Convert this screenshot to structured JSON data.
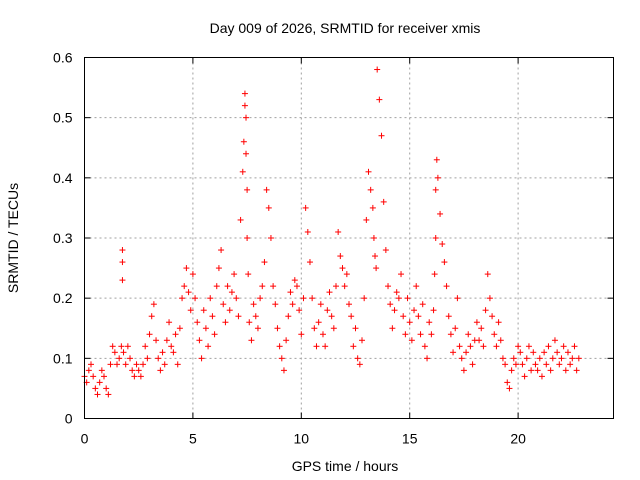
{
  "chart_data": {
    "type": "scatter",
    "title": "Day 009 of 2026, SRMTID for receiver xmis",
    "xlabel": "GPS time / hours",
    "ylabel": "SRMTID / TECUs",
    "xlim": [
      0,
      24.4
    ],
    "ylim": [
      0,
      0.6
    ],
    "xticks": [
      0,
      5,
      10,
      15,
      20
    ],
    "yticks": [
      0,
      0.1,
      0.2,
      0.3,
      0.4,
      0.5,
      0.6
    ],
    "xtick_labels": [
      "0",
      "5",
      "10",
      "15",
      "20"
    ],
    "ytick_labels": [
      "0",
      "0.1",
      "0.2",
      "0.3",
      "0.4",
      "0.5",
      "0.6"
    ],
    "grid": true,
    "marker": "+",
    "color": "#ff0000",
    "series": [
      {
        "name": "SRMTID",
        "x": [
          0.0,
          0.1,
          0.2,
          0.3,
          0.4,
          0.5,
          0.6,
          0.7,
          0.8,
          0.9,
          1.0,
          1.1,
          1.2,
          1.3,
          1.4,
          1.5,
          1.6,
          1.7,
          1.75,
          1.75,
          1.75,
          1.8,
          1.9,
          2.0,
          2.1,
          2.2,
          2.3,
          2.4,
          2.5,
          2.6,
          2.7,
          2.8,
          2.9,
          3.0,
          3.1,
          3.2,
          3.3,
          3.4,
          3.5,
          3.6,
          3.7,
          3.8,
          3.9,
          4.0,
          4.1,
          4.2,
          4.3,
          4.4,
          4.5,
          4.6,
          4.7,
          4.8,
          4.9,
          5.0,
          5.1,
          5.2,
          5.3,
          5.4,
          5.5,
          5.6,
          5.7,
          5.8,
          5.9,
          6.0,
          6.1,
          6.2,
          6.3,
          6.4,
          6.5,
          6.6,
          6.7,
          6.8,
          6.9,
          7.0,
          7.1,
          7.2,
          7.3,
          7.35,
          7.4,
          7.4,
          7.45,
          7.45,
          7.5,
          7.5,
          7.55,
          7.6,
          7.7,
          7.8,
          7.9,
          8.0,
          8.1,
          8.2,
          8.3,
          8.4,
          8.5,
          8.6,
          8.7,
          8.8,
          8.9,
          9.0,
          9.1,
          9.2,
          9.3,
          9.4,
          9.5,
          9.6,
          9.7,
          9.8,
          9.9,
          10.0,
          10.1,
          10.2,
          10.3,
          10.4,
          10.5,
          10.6,
          10.7,
          10.8,
          10.9,
          11.0,
          11.1,
          11.2,
          11.3,
          11.4,
          11.5,
          11.6,
          11.7,
          11.8,
          11.9,
          12.0,
          12.1,
          12.2,
          12.3,
          12.4,
          12.5,
          12.6,
          12.7,
          12.8,
          12.9,
          13.0,
          13.1,
          13.2,
          13.3,
          13.35,
          13.4,
          13.45,
          13.5,
          13.6,
          13.7,
          13.8,
          13.9,
          14.0,
          14.1,
          14.2,
          14.3,
          14.4,
          14.5,
          14.6,
          14.7,
          14.8,
          14.9,
          15.0,
          15.1,
          15.2,
          15.3,
          15.4,
          15.5,
          15.6,
          15.7,
          15.8,
          15.9,
          16.0,
          16.1,
          16.15,
          16.2,
          16.2,
          16.25,
          16.3,
          16.4,
          16.5,
          16.6,
          16.7,
          16.8,
          16.9,
          17.0,
          17.1,
          17.2,
          17.3,
          17.4,
          17.5,
          17.6,
          17.7,
          17.8,
          17.9,
          18.0,
          18.1,
          18.2,
          18.3,
          18.4,
          18.5,
          18.6,
          18.7,
          18.8,
          18.9,
          19.0,
          19.1,
          19.2,
          19.3,
          19.4,
          19.5,
          19.6,
          19.7,
          19.8,
          19.9,
          20.0,
          20.1,
          20.2,
          20.3,
          20.4,
          20.5,
          20.6,
          20.7,
          20.8,
          20.9,
          21.0,
          21.1,
          21.2,
          21.3,
          21.4,
          21.5,
          21.6,
          21.7,
          21.8,
          21.9,
          22.0,
          22.1,
          22.2,
          22.3,
          22.4,
          22.5,
          22.6,
          22.7,
          22.8
        ],
        "y": [
          0.07,
          0.06,
          0.08,
          0.09,
          0.07,
          0.05,
          0.04,
          0.06,
          0.08,
          0.07,
          0.05,
          0.04,
          0.09,
          0.12,
          0.11,
          0.09,
          0.1,
          0.12,
          0.28,
          0.26,
          0.23,
          0.11,
          0.09,
          0.12,
          0.1,
          0.08,
          0.07,
          0.09,
          0.08,
          0.07,
          0.09,
          0.12,
          0.1,
          0.14,
          0.17,
          0.19,
          0.13,
          0.1,
          0.08,
          0.11,
          0.09,
          0.13,
          0.16,
          0.12,
          0.11,
          0.14,
          0.09,
          0.15,
          0.2,
          0.22,
          0.25,
          0.21,
          0.18,
          0.24,
          0.2,
          0.16,
          0.13,
          0.1,
          0.18,
          0.15,
          0.12,
          0.2,
          0.17,
          0.14,
          0.22,
          0.25,
          0.28,
          0.19,
          0.16,
          0.22,
          0.18,
          0.21,
          0.24,
          0.2,
          0.17,
          0.33,
          0.41,
          0.46,
          0.54,
          0.52,
          0.5,
          0.44,
          0.38,
          0.3,
          0.24,
          0.16,
          0.13,
          0.19,
          0.17,
          0.15,
          0.2,
          0.22,
          0.26,
          0.38,
          0.35,
          0.3,
          0.22,
          0.19,
          0.15,
          0.12,
          0.1,
          0.08,
          0.13,
          0.17,
          0.21,
          0.19,
          0.23,
          0.22,
          0.18,
          0.14,
          0.2,
          0.35,
          0.31,
          0.26,
          0.2,
          0.15,
          0.12,
          0.16,
          0.19,
          0.14,
          0.12,
          0.18,
          0.21,
          0.17,
          0.15,
          0.22,
          0.31,
          0.27,
          0.25,
          0.22,
          0.24,
          0.19,
          0.17,
          0.12,
          0.15,
          0.1,
          0.09,
          0.13,
          0.2,
          0.33,
          0.41,
          0.38,
          0.35,
          0.3,
          0.27,
          0.25,
          0.58,
          0.53,
          0.47,
          0.36,
          0.28,
          0.22,
          0.19,
          0.15,
          0.18,
          0.21,
          0.2,
          0.24,
          0.17,
          0.14,
          0.2,
          0.16,
          0.13,
          0.18,
          0.22,
          0.17,
          0.14,
          0.19,
          0.12,
          0.1,
          0.16,
          0.14,
          0.18,
          0.24,
          0.3,
          0.38,
          0.43,
          0.4,
          0.34,
          0.29,
          0.26,
          0.22,
          0.17,
          0.14,
          0.11,
          0.15,
          0.2,
          0.12,
          0.1,
          0.08,
          0.11,
          0.14,
          0.12,
          0.09,
          0.13,
          0.16,
          0.13,
          0.15,
          0.12,
          0.18,
          0.24,
          0.2,
          0.17,
          0.14,
          0.12,
          0.16,
          0.13,
          0.1,
          0.09,
          0.06,
          0.05,
          0.08,
          0.1,
          0.09,
          0.12,
          0.11,
          0.09,
          0.07,
          0.1,
          0.12,
          0.08,
          0.11,
          0.09,
          0.08,
          0.1,
          0.07,
          0.11,
          0.09,
          0.12,
          0.08,
          0.1,
          0.13,
          0.11,
          0.09,
          0.1,
          0.12,
          0.08,
          0.11,
          0.09,
          0.1,
          0.12,
          0.08,
          0.1
        ]
      }
    ]
  }
}
